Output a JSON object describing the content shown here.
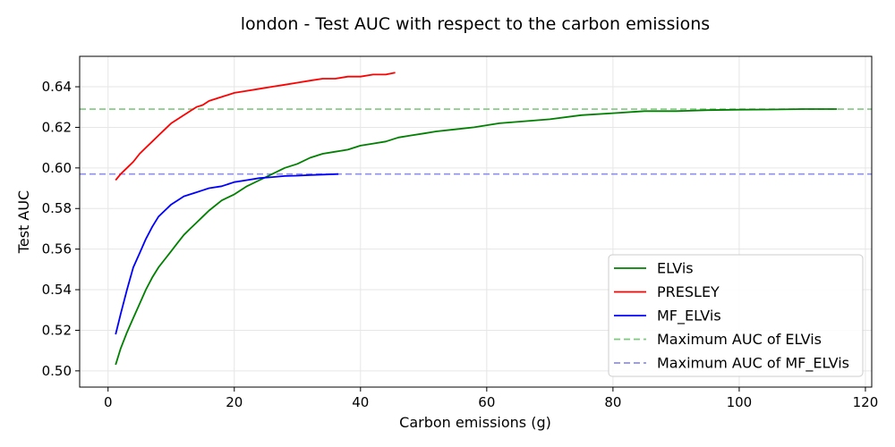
{
  "chart_data": {
    "type": "line",
    "title": "london - Test AUC with respect to the carbon emissions",
    "xlabel": "Carbon emissions (g)",
    "ylabel": "Test AUC",
    "xlim": [
      -4.5,
      121
    ],
    "ylim": [
      0.492,
      0.655
    ],
    "xticks": [
      0,
      20,
      40,
      60,
      80,
      100,
      120
    ],
    "yticks": [
      0.5,
      0.52,
      0.54,
      0.56,
      0.58,
      0.6,
      0.62,
      0.64
    ],
    "grid": true,
    "legend_position": "lower-right",
    "series": [
      {
        "name": "ELVis",
        "color": "#008000",
        "style": "solid",
        "x": [
          1.2,
          2,
          3,
          4,
          5,
          6,
          7,
          8,
          9,
          10,
          11,
          12,
          13,
          14,
          15,
          16,
          18,
          20,
          22,
          24,
          26,
          28,
          30,
          32,
          34,
          36,
          38,
          40,
          42,
          44,
          46,
          48,
          50,
          52,
          55,
          58,
          62,
          66,
          70,
          75,
          80,
          85,
          90,
          95,
          100,
          105,
          110,
          115.5
        ],
        "y": [
          0.503,
          0.511,
          0.519,
          0.526,
          0.533,
          0.54,
          0.546,
          0.551,
          0.555,
          0.559,
          0.563,
          0.567,
          0.57,
          0.573,
          0.576,
          0.579,
          0.584,
          0.587,
          0.591,
          0.594,
          0.597,
          0.6,
          0.602,
          0.605,
          0.607,
          0.608,
          0.609,
          0.611,
          0.612,
          0.613,
          0.615,
          0.616,
          0.617,
          0.618,
          0.619,
          0.62,
          0.622,
          0.623,
          0.624,
          0.626,
          0.627,
          0.628,
          0.628,
          0.6285,
          0.6287,
          0.6288,
          0.629,
          0.629
        ]
      },
      {
        "name": "PRESLEY",
        "color": "#ff0000",
        "style": "solid",
        "x": [
          1.2,
          2,
          3,
          4,
          5,
          6,
          7,
          8,
          9,
          10,
          11,
          12,
          13,
          14,
          15,
          16,
          18,
          20,
          22,
          24,
          26,
          28,
          30,
          32,
          34,
          36,
          38,
          40,
          42,
          44,
          45.5
        ],
        "y": [
          0.594,
          0.597,
          0.6,
          0.603,
          0.607,
          0.61,
          0.613,
          0.616,
          0.619,
          0.622,
          0.624,
          0.626,
          0.628,
          0.63,
          0.631,
          0.633,
          0.635,
          0.637,
          0.638,
          0.639,
          0.64,
          0.641,
          0.642,
          0.643,
          0.644,
          0.644,
          0.645,
          0.645,
          0.646,
          0.646,
          0.647
        ]
      },
      {
        "name": "MF_ELVis",
        "color": "#0000ff",
        "style": "solid",
        "x": [
          1.2,
          2,
          3,
          4,
          5,
          6,
          7,
          8,
          9,
          10,
          11,
          12,
          13,
          14,
          15,
          16,
          18,
          20,
          22,
          24,
          26,
          28,
          30,
          32,
          34,
          36.5
        ],
        "y": [
          0.518,
          0.528,
          0.54,
          0.551,
          0.558,
          0.565,
          0.571,
          0.576,
          0.579,
          0.582,
          0.584,
          0.586,
          0.587,
          0.588,
          0.589,
          0.59,
          0.591,
          0.593,
          0.594,
          0.595,
          0.5955,
          0.596,
          0.5962,
          0.5965,
          0.5967,
          0.597
        ]
      }
    ],
    "reference_lines": [
      {
        "name": "Maximum AUC of ELVis",
        "y": 0.629,
        "color": "#7fc97f",
        "style": "dashed"
      },
      {
        "name": "Maximum AUC of MF_ELVis",
        "y": 0.597,
        "color": "#8f8ff0",
        "style": "dashed"
      }
    ]
  }
}
